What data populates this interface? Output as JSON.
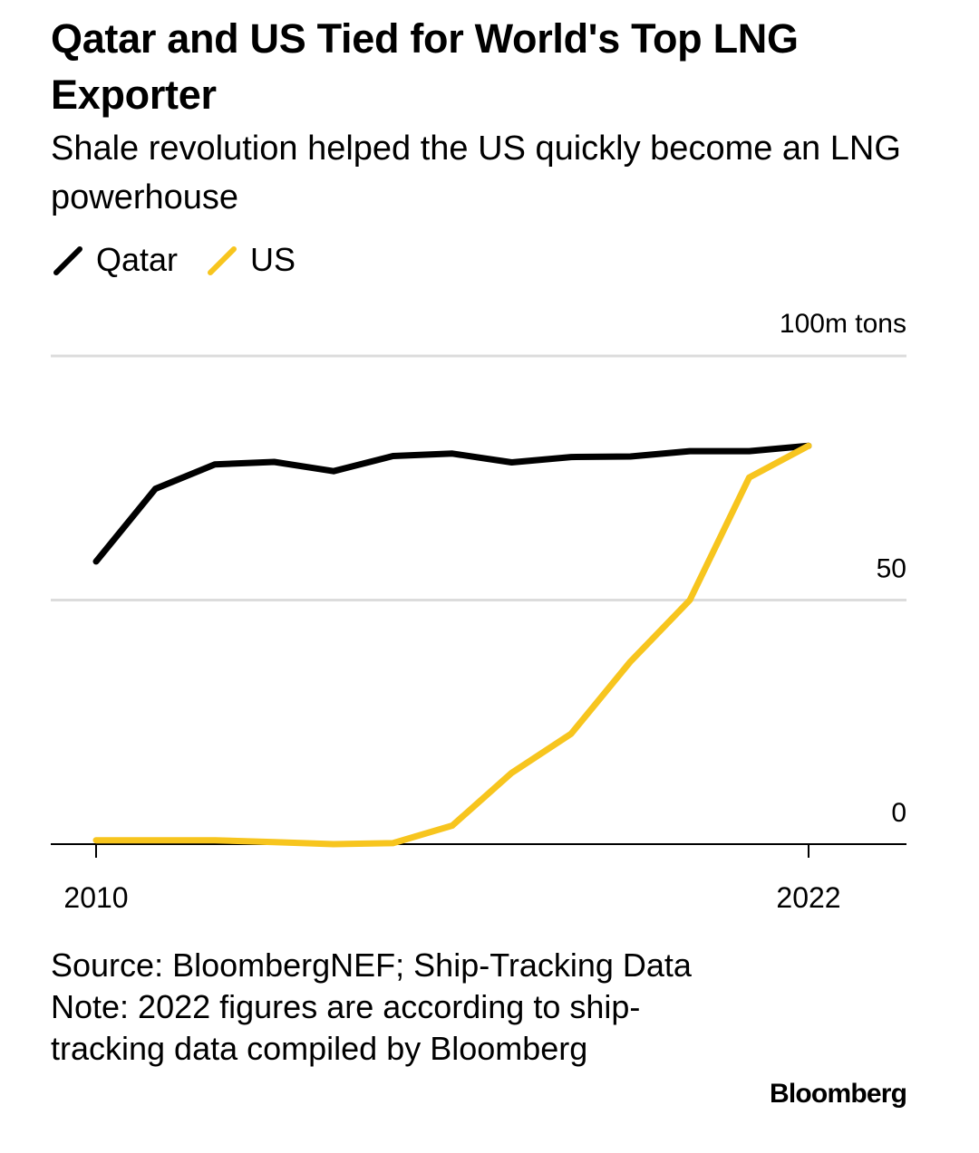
{
  "title": "Qatar and US Tied for World's Top LNG Exporter",
  "subtitle": "Shale revolution helped the US quickly become an LNG powerhouse",
  "legend": [
    {
      "name": "Qatar",
      "color": "#000000"
    },
    {
      "name": "US",
      "color": "#f7c51e"
    }
  ],
  "chart_data": {
    "type": "line",
    "title": "Qatar and US Tied for World's Top LNG Exporter",
    "subtitle": "Shale revolution helped the US quickly become an LNG powerhouse",
    "xlabel": "",
    "ylabel": "",
    "unit_label": "100m tons",
    "x": [
      2010,
      2011,
      2012,
      2013,
      2014,
      2015,
      2016,
      2017,
      2018,
      2019,
      2020,
      2021,
      2022
    ],
    "x_tick_labels": [
      "2010",
      "2022"
    ],
    "y_ticks": [
      0,
      50,
      100
    ],
    "y_tick_labels": [
      "0",
      "50",
      ""
    ],
    "ylim": [
      0,
      100
    ],
    "xlim": [
      2010,
      2023.6
    ],
    "grid": true,
    "legend_position": "top-left",
    "series": [
      {
        "name": "Qatar",
        "color": "#000000",
        "values": [
          57.9,
          72.8,
          77.8,
          78.3,
          76.4,
          79.5,
          80.0,
          78.2,
          79.3,
          79.4,
          80.5,
          80.5,
          81.6
        ]
      },
      {
        "name": "US",
        "color": "#f7c51e",
        "values": [
          0.8,
          0.8,
          0.8,
          0.4,
          0.0,
          0.2,
          3.8,
          14.6,
          22.6,
          37.4,
          50.0,
          75.1,
          81.6
        ]
      }
    ]
  },
  "footer": {
    "source": "Source: BloombergNEF; Ship-Tracking Data",
    "note": "Note: 2022 figures are according to ship-tracking data compiled by Bloomberg"
  },
  "brand": "Bloomberg"
}
